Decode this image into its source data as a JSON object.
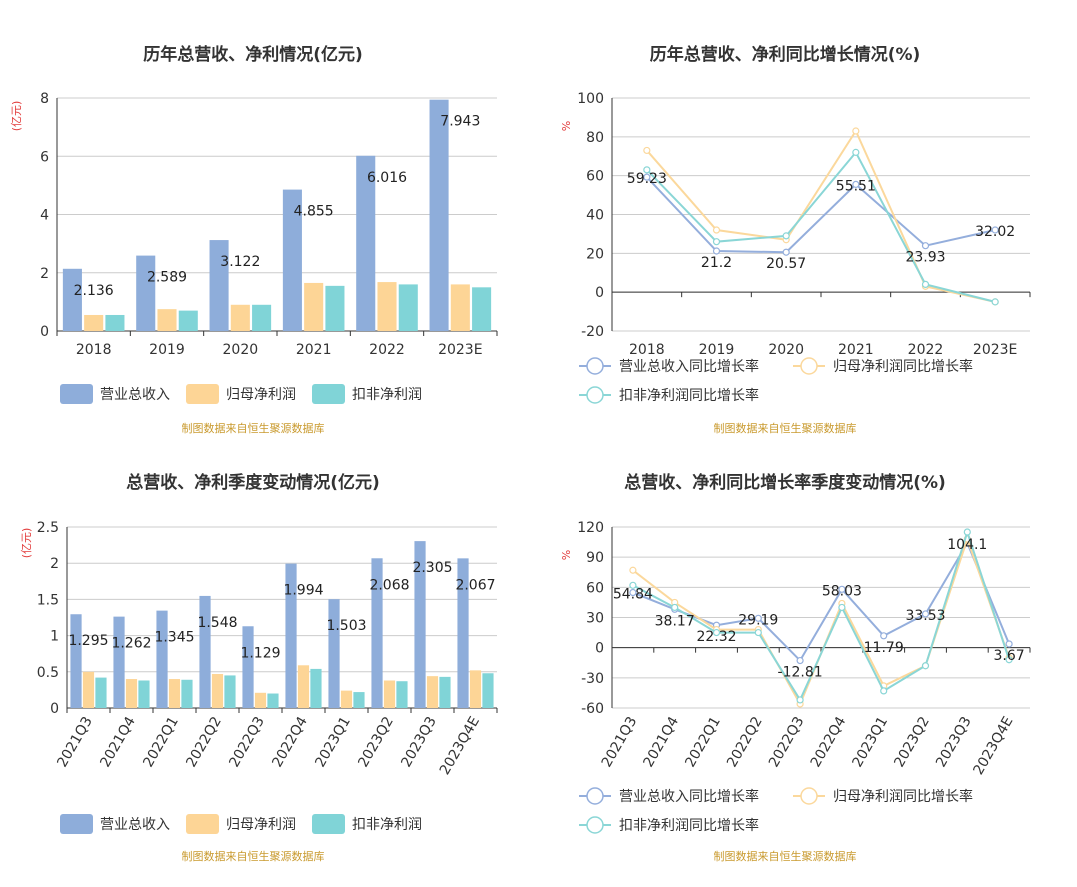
{
  "source": "制图数据来自恒生聚源数据库",
  "colors": {
    "revenue": "#8eadda",
    "net_profit": "#fdd596",
    "deducted_profit": "#80d4d7",
    "revenue_line": "#94aedc",
    "net_line": "#fbd89c",
    "deducted_line": "#8ad6d6"
  },
  "chart_data": [
    {
      "type": "bar",
      "title": "历年总营收、净利情况(亿元)",
      "ylabel": "(亿元)",
      "ylim": [
        0,
        8
      ],
      "yticks": [
        "0",
        "2",
        "4",
        "6",
        "8"
      ],
      "categories": [
        "2018",
        "2019",
        "2020",
        "2021",
        "2022",
        "2023E"
      ],
      "series": [
        {
          "name": "营业总收入",
          "values": [
            2.136,
            2.589,
            3.122,
            4.855,
            6.016,
            7.943
          ],
          "labels": [
            "2.136",
            "2.589",
            "3.122",
            "4.855",
            "6.016",
            "7.943"
          ]
        },
        {
          "name": "归母净利润",
          "values": [
            0.55,
            0.75,
            0.9,
            1.65,
            1.68,
            1.6
          ]
        },
        {
          "name": "扣非净利润",
          "values": [
            0.55,
            0.7,
            0.9,
            1.55,
            1.6,
            1.5
          ]
        }
      ],
      "legend": "bottom"
    },
    {
      "type": "line",
      "title": "历年总营收、净利同比增长情况(%)",
      "ylabel": "%",
      "ylim": [
        -20,
        100
      ],
      "yticks": [
        "-20",
        "0",
        "20",
        "40",
        "60",
        "80",
        "100"
      ],
      "categories": [
        "2018",
        "2019",
        "2020",
        "2021",
        "2022",
        "2023E"
      ],
      "series": [
        {
          "name": "营业总收入同比增长率",
          "values": [
            59.23,
            21.2,
            20.57,
            55.51,
            23.93,
            32.02
          ],
          "labels": [
            "59.23",
            "21.2",
            "20.57",
            "55.51",
            "23.93",
            "32.02"
          ]
        },
        {
          "name": "归母净利润同比增长率",
          "values": [
            73,
            32,
            27,
            83,
            3,
            -5
          ]
        },
        {
          "name": "扣非净利润同比增长率",
          "values": [
            63,
            26,
            29,
            72,
            4,
            -5
          ]
        }
      ],
      "legend": "bottom"
    },
    {
      "type": "bar",
      "title": "总营收、净利季度变动情况(亿元)",
      "ylabel": "(亿元)",
      "ylim": [
        0,
        2.5
      ],
      "yticks": [
        "0",
        "0.5",
        "1",
        "1.5",
        "2",
        "2.5"
      ],
      "categories": [
        "2021Q3",
        "2021Q4",
        "2022Q1",
        "2022Q2",
        "2022Q3",
        "2022Q4",
        "2023Q1",
        "2023Q2",
        "2023Q3",
        "2023Q4E"
      ],
      "series": [
        {
          "name": "营业总收入",
          "values": [
            1.295,
            1.262,
            1.345,
            1.548,
            1.129,
            1.994,
            1.503,
            2.068,
            2.305,
            2.067
          ],
          "labels": [
            "1.295",
            "1.262",
            "1.345",
            "1.548",
            "1.129",
            "1.994",
            "1.503",
            "2.068",
            "2.305",
            "2.067"
          ]
        },
        {
          "name": "归母净利润",
          "values": [
            0.5,
            0.4,
            0.4,
            0.47,
            0.21,
            0.59,
            0.24,
            0.38,
            0.44,
            0.52
          ]
        },
        {
          "name": "扣非净利润",
          "values": [
            0.42,
            0.38,
            0.39,
            0.45,
            0.2,
            0.54,
            0.22,
            0.37,
            0.43,
            0.48
          ]
        }
      ],
      "legend": "bottom"
    },
    {
      "type": "line",
      "title": "总营收、净利同比增长率季度变动情况(%)",
      "ylabel": "%",
      "ylim": [
        -60,
        120
      ],
      "yticks": [
        "-60",
        "-30",
        "0",
        "30",
        "60",
        "90",
        "120"
      ],
      "categories": [
        "2021Q3",
        "2021Q4",
        "2022Q1",
        "2022Q2",
        "2022Q3",
        "2022Q4",
        "2023Q1",
        "2023Q2",
        "2023Q3",
        "2023Q4E"
      ],
      "series": [
        {
          "name": "营业总收入同比增长率",
          "values": [
            54.84,
            38.17,
            22.32,
            29.19,
            -12.81,
            58.03,
            11.79,
            33.53,
            104.1,
            3.67
          ],
          "labels": [
            "54.84",
            "38.17",
            "22.32",
            "29.19",
            "-12.81",
            "58.03",
            "11.79",
            "33.53",
            "104.1",
            "3.67"
          ]
        },
        {
          "name": "归母净利润同比增长率",
          "values": [
            77,
            45,
            18,
            18,
            -56,
            44,
            -38,
            -18,
            108,
            -10
          ]
        },
        {
          "name": "扣非净利润同比增长率",
          "values": [
            62,
            40,
            15,
            15,
            -52,
            40,
            -43,
            -18,
            115,
            -12
          ]
        }
      ],
      "legend": "bottom"
    }
  ]
}
